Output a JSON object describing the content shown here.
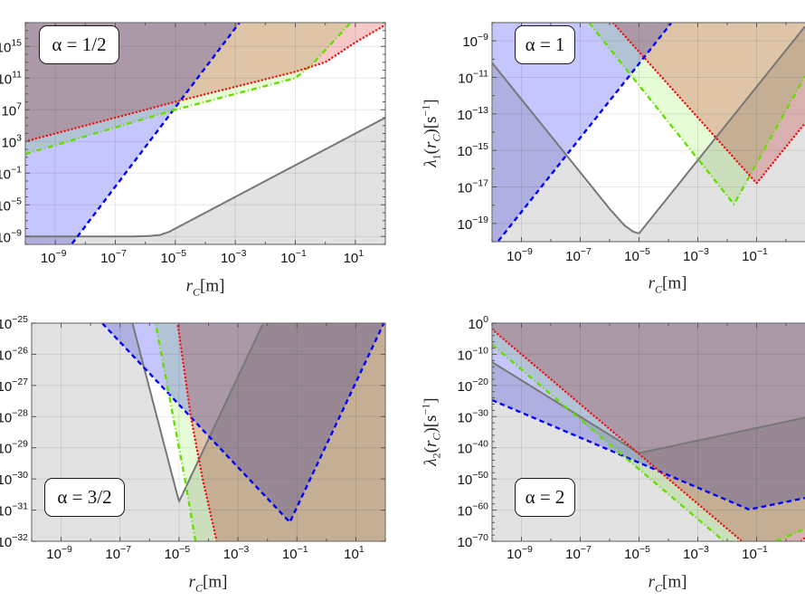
{
  "chart_data": [
    {
      "type": "line",
      "axis_scale": "log10 (values below are exponents)",
      "title": "α = 1/2",
      "xlabel": [
        {
          "t": "r",
          "s": "it"
        },
        {
          "t": "C",
          "s": "sub it"
        },
        {
          "t": "[m]",
          "s": ""
        }
      ],
      "ylabel": [],
      "xlim": [
        -10,
        2
      ],
      "ylim": [
        -10,
        18
      ],
      "xticks": [
        -9,
        -7,
        -5,
        -3,
        -1,
        1
      ],
      "xminor": 1,
      "yticks": [
        15,
        11,
        7,
        3,
        -1,
        -5,
        -9
      ],
      "yminor": 1,
      "grid": true,
      "series": [
        {
          "color": "#777777",
          "dash": "solid",
          "fill": "below",
          "fill_color": "#e2e2e2",
          "points": [
            [
              -10,
              -9
            ],
            [
              -6.5,
              -9
            ],
            [
              -5.9,
              -8.95
            ],
            [
              -5.5,
              -8.8
            ],
            [
              -5.2,
              -8.4
            ],
            [
              2,
              6
            ]
          ]
        },
        {
          "color": "#0000ff",
          "dash": "dashed",
          "fill": "above",
          "fill_color": "#c6c6ff",
          "points": [
            [
              -10,
              -17.7
            ],
            [
              2,
              42.3
            ]
          ]
        },
        {
          "color": "#66dd00",
          "dash": "dashdot",
          "fill": "above",
          "fill_color": "#e6fcd6",
          "points": [
            [
              -10,
              1.4
            ],
            [
              -5,
              7
            ],
            [
              -1,
              11
            ],
            [
              -0.5,
              12.5
            ],
            [
              0.85,
              18
            ],
            [
              1,
              19
            ]
          ]
        },
        {
          "color": "#ee1111",
          "dash": "dotted",
          "fill": "above",
          "fill_color": "#f6c8c8",
          "points": [
            [
              -10,
              3
            ],
            [
              -5,
              8
            ],
            [
              -1,
              11.8
            ],
            [
              0,
              13
            ],
            [
              1,
              15.5
            ],
            [
              2,
              17.7
            ]
          ]
        }
      ]
    },
    {
      "type": "line",
      "axis_scale": "log10 (values below are exponents)",
      "title": "α = 1",
      "xlabel": [
        {
          "t": "r",
          "s": "it"
        },
        {
          "t": "C",
          "s": "sub it"
        },
        {
          "t": "[m]",
          "s": ""
        }
      ],
      "ylabel": [
        {
          "t": "λ",
          "s": "it"
        },
        {
          "t": "1",
          "s": "sub"
        },
        {
          "t": "(",
          "s": ""
        },
        {
          "t": "r",
          "s": "it"
        },
        {
          "t": "C",
          "s": "sub it"
        },
        {
          "t": ")[s",
          "s": ""
        },
        {
          "t": "−1",
          "s": "sup"
        },
        {
          "t": "]",
          "s": ""
        }
      ],
      "xlim": [
        -10,
        2
      ],
      "ylim": [
        -20,
        -8
      ],
      "xticks": [
        -9,
        -7,
        -5,
        -3,
        -1
      ],
      "xminor": 1,
      "yticks": [
        -9,
        -11,
        -13,
        -15,
        -17,
        -19
      ],
      "yminor": 1,
      "grid": true,
      "series": [
        {
          "color": "#777777",
          "dash": "solid",
          "fill": "below",
          "fill_color": "#e2e2e2",
          "points": [
            [
              -10,
              -10.2
            ],
            [
              -6,
              -18.2
            ],
            [
              -5.5,
              -19.1
            ],
            [
              -5.2,
              -19.45
            ],
            [
              -5,
              -19.55
            ],
            [
              1,
              -7.5
            ]
          ]
        },
        {
          "color": "#0000ff",
          "dash": "dashed",
          "fill": "above",
          "fill_color": "#c6c6ff",
          "points": [
            [
              -10,
              -20.4
            ],
            [
              2,
              3.96
            ]
          ]
        },
        {
          "color": "#66dd00",
          "dash": "dashdot",
          "fill": "above",
          "fill_color": "#e6fcd6",
          "points": [
            [
              -7,
              -7.4
            ],
            [
              -1.77,
              -17.95
            ],
            [
              2,
              -7
            ]
          ]
        },
        {
          "color": "#ee1111",
          "dash": "dotted",
          "fill": "above",
          "fill_color": "#f6c8c8",
          "points": [
            [
              -6,
              -7.8
            ],
            [
              -1,
              -16.8
            ],
            [
              2,
              -10.8
            ]
          ]
        }
      ]
    },
    {
      "type": "line",
      "axis_scale": "log10 (values below are exponents)",
      "title": "α = 3/2",
      "xlabel": [
        {
          "t": "r",
          "s": "it"
        },
        {
          "t": "C",
          "s": "sub it"
        },
        {
          "t": "[m]",
          "s": ""
        }
      ],
      "ylabel": [],
      "xlim": [
        -10,
        2
      ],
      "ylim": [
        -32,
        -25
      ],
      "xticks": [
        -9,
        -7,
        -5,
        -3,
        -1,
        1
      ],
      "xminor": 1,
      "yticks": [
        -25,
        -26,
        -27,
        -28,
        -29,
        -30,
        -31,
        -32
      ],
      "yminor": 1,
      "grid": true,
      "series": [
        {
          "color": "#777777",
          "dash": "solid",
          "fill": "below",
          "fill_color": "#e2e2e2",
          "points": [
            [
              -10,
              -12.6
            ],
            [
              -5,
              -30.73
            ],
            [
              2,
              -16.7
            ]
          ]
        },
        {
          "color": "#0000ff",
          "dash": "dashed",
          "fill": "above",
          "fill_color": "#c6c6ff",
          "points": [
            [
              -10,
              -22.6
            ],
            [
              -1.24,
              -31.39
            ],
            [
              2,
              -24.9
            ]
          ]
        },
        {
          "color": "#66dd00",
          "dash": "dashdot",
          "fill": "right",
          "fill_color": "#e6fcd6",
          "points": [
            [
              -5.9,
              -24
            ],
            [
              -5.8,
              -25
            ],
            [
              -5.2,
              -28
            ],
            [
              -4.8,
              -30
            ],
            [
              -4.44,
              -32
            ],
            [
              -4.3,
              -33
            ]
          ]
        },
        {
          "color": "#ee1111",
          "dash": "dotted",
          "fill": "right",
          "fill_color": "#f6c8c8",
          "points": [
            [
              -5.1,
              -24
            ],
            [
              -5.05,
              -25
            ],
            [
              -4.6,
              -28
            ],
            [
              -4.2,
              -30
            ],
            [
              -3.72,
              -32
            ],
            [
              -3.6,
              -33
            ]
          ]
        }
      ]
    },
    {
      "type": "line",
      "axis_scale": "log10 (values below are exponents)",
      "title": "α = 2",
      "xlabel": [
        {
          "t": "r",
          "s": "it"
        },
        {
          "t": "C",
          "s": "sub it"
        },
        {
          "t": "[m]",
          "s": ""
        }
      ],
      "ylabel": [
        {
          "t": "λ",
          "s": "it"
        },
        {
          "t": "2",
          "s": "sub"
        },
        {
          "t": "(",
          "s": ""
        },
        {
          "t": "r",
          "s": "it"
        },
        {
          "t": "C",
          "s": "sub it"
        },
        {
          "t": ")[s",
          "s": ""
        },
        {
          "t": "−1",
          "s": "sup"
        },
        {
          "t": "]",
          "s": ""
        }
      ],
      "xlim": [
        -10,
        2
      ],
      "ylim": [
        -70,
        0
      ],
      "xticks": [
        -9,
        -7,
        -5,
        -3,
        -1
      ],
      "xminor": 1,
      "yticks": [
        0,
        -10,
        -20,
        -30,
        -40,
        -50,
        -60,
        -70
      ],
      "yminor": 2,
      "grid": true,
      "series": [
        {
          "color": "#777777",
          "dash": "solid",
          "fill": "below",
          "fill_color": "#e2e2e2",
          "points": [
            [
              -10,
              -12.5
            ],
            [
              -5,
              -41.7
            ],
            [
              2,
              -27.6
            ]
          ]
        },
        {
          "color": "#0000ff",
          "dash": "dashed",
          "fill": "above",
          "fill_color": "#c6c6ff",
          "points": [
            [
              -10,
              -24.7
            ],
            [
              -1.26,
              -59.8
            ],
            [
              2,
              -53.5
            ]
          ]
        },
        {
          "color": "#66dd00",
          "dash": "dashdot",
          "fill": "above",
          "fill_color": "#e6fcd6",
          "points": [
            [
              -10,
              -6.9
            ],
            [
              -1.52,
              -74.7
            ],
            [
              2,
              -60.6
            ]
          ]
        },
        {
          "color": "#ee1111",
          "dash": "dotted",
          "fill": "above",
          "fill_color": "#f6c8c8",
          "points": [
            [
              -10,
              -2
            ],
            [
              -0.5,
              -78
            ],
            [
              2,
              -58
            ]
          ]
        }
      ]
    }
  ]
}
